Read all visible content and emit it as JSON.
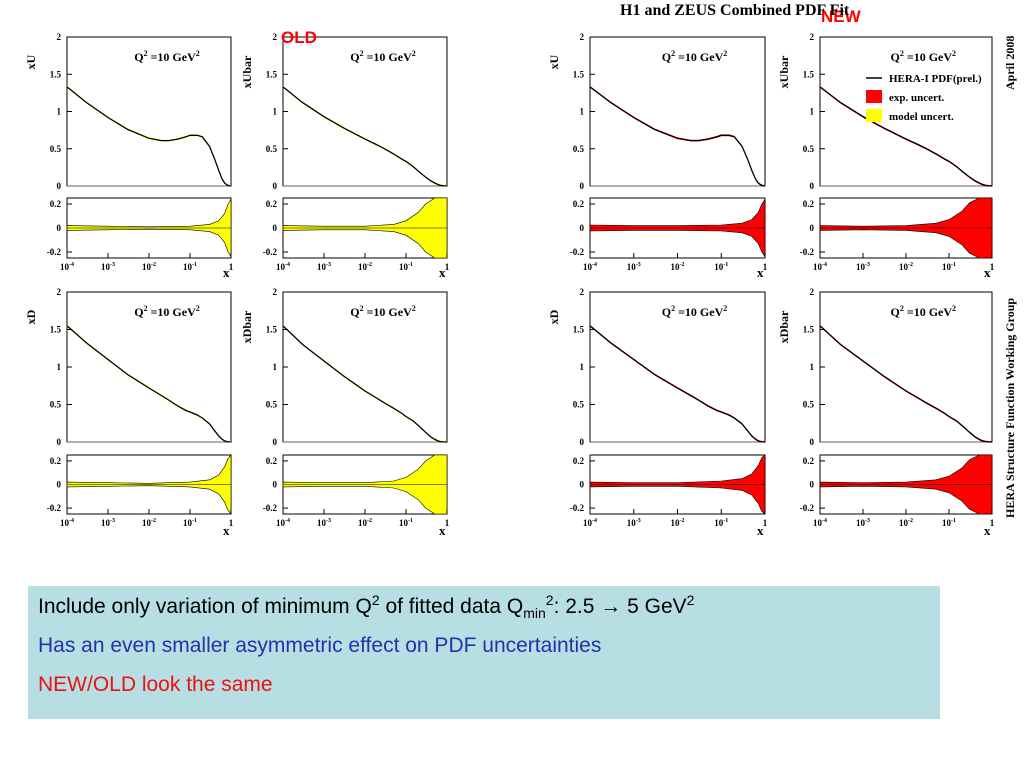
{
  "labels": {
    "old": "OLD",
    "new": "NEW",
    "figure_title": "H1 and ZEUS Combined PDF Fit",
    "date": "April 2008",
    "group": "HERA Structure Function Working Group"
  },
  "legend": [
    {
      "label": "HERA-I PDF(prel.)",
      "color": "#000000",
      "kind": "line"
    },
    {
      "label": "exp. uncert.",
      "color": "#ff0000",
      "kind": "box"
    },
    {
      "label": "model uncert.",
      "color": "#ffff00",
      "kind": "box"
    }
  ],
  "colors": {
    "old_band": "#ffff00",
    "new_band": "#ff0000",
    "box_bg": "#b7dfe3",
    "line2": "#2233aa",
    "line3": "#ee1111"
  },
  "info": {
    "line1_prefix": "Include only variation of minimum Q",
    "line1_sup1": "2",
    "line1_mid": " of fitted data Q",
    "line1_sub": "min",
    "line1_sup2": "2",
    "line1_suffix": ": 2.5 → 5 GeV",
    "line1_sup3": "2",
    "line2": "Has an even smaller asymmetric effect on PDF uncertainties",
    "line3": "NEW/OLD look the same"
  },
  "chart_data": {
    "type": "line",
    "x_axis": {
      "scale": "log",
      "range": [
        0.0001,
        1
      ],
      "label": "x",
      "ticks": [
        "10^-4",
        "10^-3",
        "10^-2",
        "10^-1",
        "1"
      ]
    },
    "main_ylim": [
      0,
      2
    ],
    "main_yticks": [
      "0",
      "0.5",
      "1",
      "1.5",
      "2"
    ],
    "ratio_ylim": [
      -0.25,
      0.25
    ],
    "ratio_yticks": [
      "-0.2",
      "0",
      "0.2"
    ],
    "annotation": "Q² =10 GeV²",
    "pdfs": [
      {
        "name": "xU",
        "x": [
          0.0001,
          0.0003,
          0.001,
          0.003,
          0.01,
          0.02,
          0.03,
          0.05,
          0.08,
          0.1,
          0.15,
          0.2,
          0.3,
          0.4,
          0.5,
          0.6,
          0.7,
          0.8,
          0.9,
          1
        ],
        "y": [
          1.33,
          1.12,
          0.92,
          0.76,
          0.64,
          0.61,
          0.61,
          0.63,
          0.66,
          0.68,
          0.68,
          0.66,
          0.53,
          0.36,
          0.21,
          0.1,
          0.04,
          0.015,
          0.003,
          0.0
        ],
        "ratio_x": [
          0.0001,
          0.001,
          0.01,
          0.1,
          0.3,
          0.5,
          0.7,
          0.85,
          1
        ],
        "ratio_old": [
          0.02,
          0.015,
          0.01,
          0.015,
          0.03,
          0.06,
          0.12,
          0.2,
          0.24
        ],
        "ratio_new": [
          0.025,
          0.02,
          0.02,
          0.025,
          0.04,
          0.07,
          0.13,
          0.2,
          0.24
        ]
      },
      {
        "name": "xUbar",
        "x": [
          0.0001,
          0.0003,
          0.001,
          0.003,
          0.01,
          0.02,
          0.03,
          0.05,
          0.08,
          0.1,
          0.15,
          0.2,
          0.3,
          0.4,
          0.5,
          0.6,
          0.7,
          0.8,
          0.9,
          1
        ],
        "y": [
          1.33,
          1.12,
          0.93,
          0.78,
          0.63,
          0.55,
          0.5,
          0.43,
          0.36,
          0.33,
          0.26,
          0.2,
          0.12,
          0.07,
          0.04,
          0.02,
          0.008,
          0.003,
          0.001,
          0.0
        ],
        "ratio_x": [
          0.0001,
          0.001,
          0.01,
          0.05,
          0.1,
          0.2,
          0.3,
          0.5,
          1
        ],
        "ratio_old": [
          0.02,
          0.015,
          0.015,
          0.03,
          0.06,
          0.13,
          0.2,
          0.25,
          0.25
        ],
        "ratio_new": [
          0.02,
          0.015,
          0.02,
          0.04,
          0.07,
          0.14,
          0.21,
          0.25,
          0.25
        ]
      },
      {
        "name": "xD",
        "x": [
          0.0001,
          0.0003,
          0.001,
          0.003,
          0.01,
          0.02,
          0.03,
          0.05,
          0.08,
          0.1,
          0.15,
          0.2,
          0.3,
          0.4,
          0.5,
          0.6,
          0.7,
          0.8,
          0.9,
          1
        ],
        "y": [
          1.55,
          1.32,
          1.1,
          0.9,
          0.72,
          0.62,
          0.56,
          0.48,
          0.42,
          0.4,
          0.36,
          0.32,
          0.24,
          0.15,
          0.08,
          0.04,
          0.015,
          0.005,
          0.001,
          0.0
        ],
        "ratio_x": [
          0.0001,
          0.001,
          0.01,
          0.1,
          0.3,
          0.5,
          0.7,
          0.85,
          1
        ],
        "ratio_old": [
          0.02,
          0.015,
          0.01,
          0.02,
          0.04,
          0.08,
          0.15,
          0.22,
          0.25
        ],
        "ratio_new": [
          0.02,
          0.015,
          0.015,
          0.03,
          0.05,
          0.09,
          0.16,
          0.23,
          0.25
        ]
      },
      {
        "name": "xDbar",
        "x": [
          0.0001,
          0.0003,
          0.001,
          0.003,
          0.01,
          0.02,
          0.03,
          0.05,
          0.08,
          0.1,
          0.15,
          0.2,
          0.3,
          0.4,
          0.5,
          0.6,
          0.7,
          0.8,
          0.9,
          1
        ],
        "y": [
          1.55,
          1.3,
          1.08,
          0.88,
          0.68,
          0.58,
          0.52,
          0.45,
          0.38,
          0.34,
          0.28,
          0.22,
          0.13,
          0.07,
          0.035,
          0.015,
          0.006,
          0.002,
          0.0005,
          0.0
        ],
        "ratio_x": [
          0.0001,
          0.001,
          0.01,
          0.05,
          0.1,
          0.2,
          0.3,
          0.5,
          1
        ],
        "ratio_old": [
          0.02,
          0.015,
          0.015,
          0.03,
          0.06,
          0.13,
          0.2,
          0.25,
          0.25
        ],
        "ratio_new": [
          0.02,
          0.015,
          0.02,
          0.04,
          0.07,
          0.14,
          0.21,
          0.25,
          0.25
        ]
      }
    ]
  }
}
